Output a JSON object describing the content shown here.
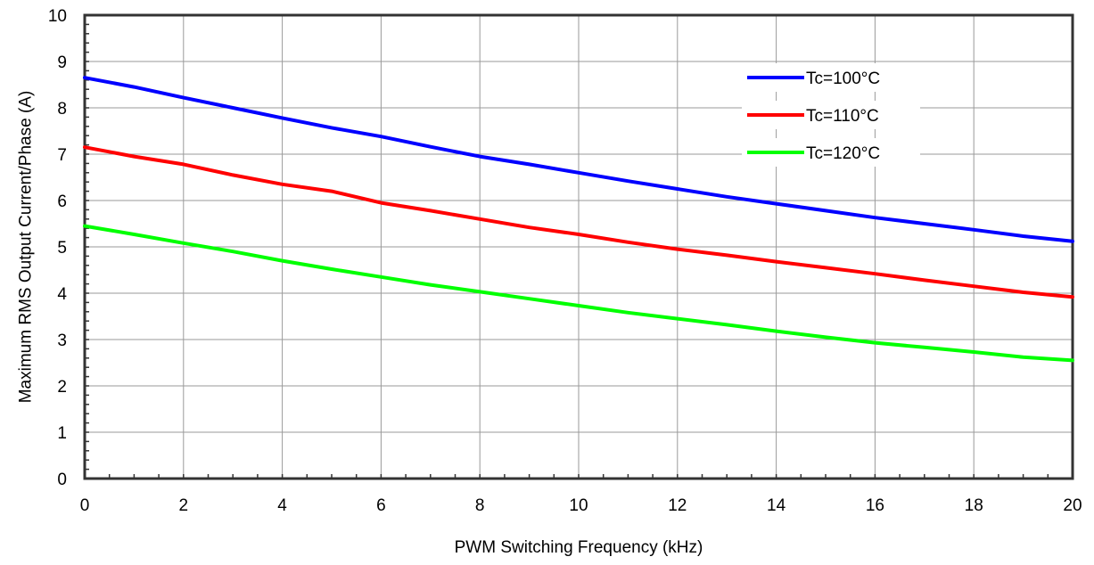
{
  "chart_data": {
    "type": "line",
    "title": "",
    "xlabel": "PWM Switching Frequency (kHz)",
    "ylabel": "Maximum RMS Output Current/Phase (A)",
    "xlim": [
      0,
      20
    ],
    "ylim": [
      0,
      10
    ],
    "x_ticks": [
      0,
      2,
      4,
      6,
      8,
      10,
      12,
      14,
      16,
      18,
      20
    ],
    "y_ticks": [
      0,
      1,
      2,
      3,
      4,
      5,
      6,
      7,
      8,
      9,
      10
    ],
    "grid": true,
    "legend_position": "top-right",
    "x": [
      0,
      1,
      2,
      3,
      4,
      5,
      6,
      7,
      8,
      9,
      10,
      11,
      12,
      13,
      14,
      15,
      16,
      17,
      18,
      19,
      20
    ],
    "series": [
      {
        "name": "Tc=100°C",
        "color": "#0000ff",
        "values": [
          8.65,
          8.45,
          8.22,
          8.0,
          7.78,
          7.57,
          7.38,
          7.16,
          6.95,
          6.78,
          6.6,
          6.42,
          6.25,
          6.08,
          5.93,
          5.78,
          5.63,
          5.5,
          5.37,
          5.23,
          5.12
        ]
      },
      {
        "name": "Tc=110°C",
        "color": "#ff0000",
        "values": [
          7.15,
          6.95,
          6.78,
          6.55,
          6.35,
          6.2,
          5.95,
          5.78,
          5.6,
          5.42,
          5.27,
          5.1,
          4.95,
          4.82,
          4.68,
          4.55,
          4.42,
          4.28,
          4.15,
          4.02,
          3.92
        ]
      },
      {
        "name": "Tc=120°C",
        "color": "#00ff00",
        "values": [
          5.45,
          5.27,
          5.08,
          4.9,
          4.7,
          4.52,
          4.35,
          4.18,
          4.03,
          3.88,
          3.73,
          3.58,
          3.45,
          3.32,
          3.18,
          3.05,
          2.93,
          2.83,
          2.73,
          2.62,
          2.55
        ]
      }
    ]
  }
}
